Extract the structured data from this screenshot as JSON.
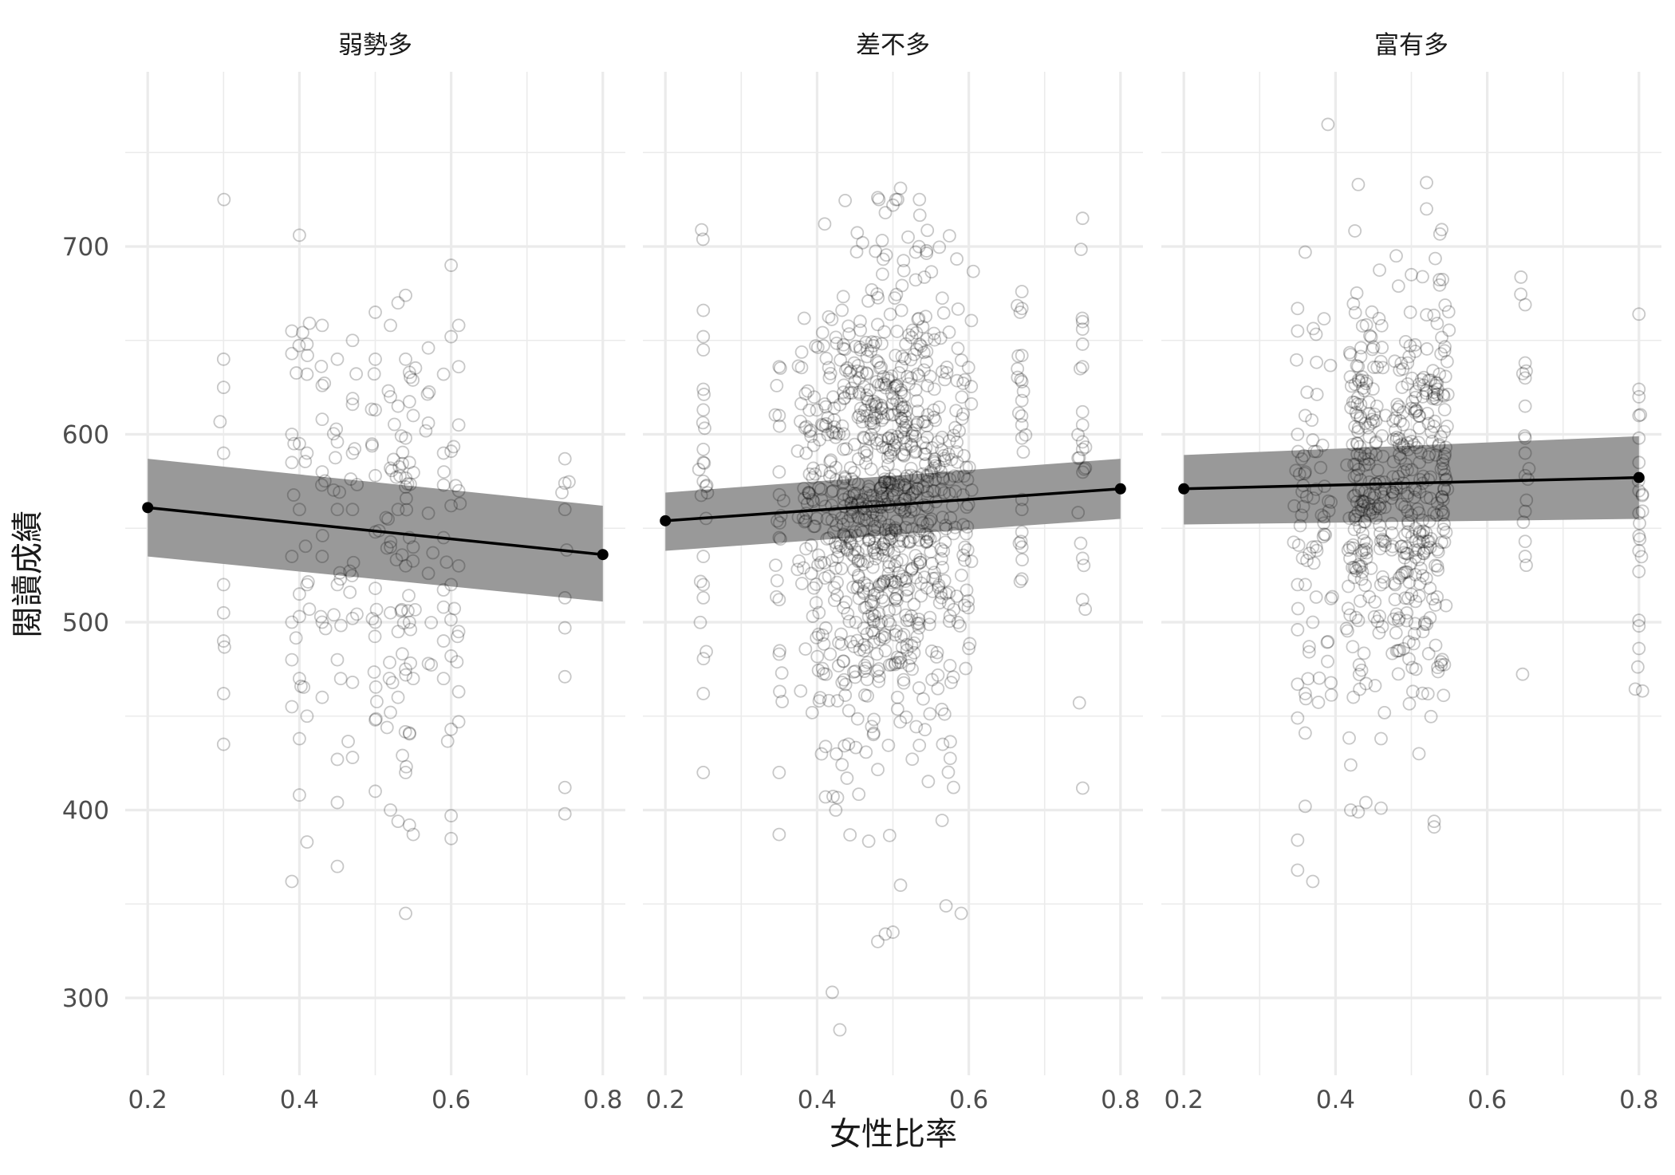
{
  "chart_data": {
    "type": "scatter",
    "facet_variable_values": [
      "弱勢多",
      "差不多",
      "富有多"
    ],
    "xlabel": "女性比率",
    "ylabel": "閱讀成績",
    "xlim": [
      0.2,
      0.8
    ],
    "ylim": [
      260,
      760
    ],
    "x_ticks": [
      "0.2",
      "0.4",
      "0.6",
      "0.8"
    ],
    "y_ticks": [
      "300",
      "400",
      "500",
      "600",
      "700"
    ],
    "grid": true,
    "legend": "none",
    "colors": {
      "points": "#000000",
      "line": "#000000",
      "ribbon": "#999999",
      "grid": "#ebebeb"
    },
    "panels": [
      {
        "title": "弱勢多",
        "fit": {
          "x": [
            0.2,
            0.8
          ],
          "y": [
            561,
            536
          ],
          "ci_lower": [
            535,
            511
          ],
          "ci_upper": [
            587,
            562
          ]
        },
        "cluster_x": [
          0.3,
          0.39,
          0.4,
          0.41,
          0.43,
          0.45,
          0.47,
          0.5,
          0.52,
          0.53,
          0.54,
          0.545,
          0.55,
          0.57,
          0.59,
          0.6,
          0.61,
          0.75
        ],
        "points_sample": [
          [
            0.3,
            640
          ],
          [
            0.3,
            625
          ],
          [
            0.3,
            590
          ],
          [
            0.3,
            520
          ],
          [
            0.3,
            505
          ],
          [
            0.3,
            490
          ],
          [
            0.3,
            462
          ],
          [
            0.3,
            435
          ],
          [
            0.39,
            655
          ],
          [
            0.39,
            643
          ],
          [
            0.39,
            600
          ],
          [
            0.39,
            585
          ],
          [
            0.39,
            535
          ],
          [
            0.39,
            500
          ],
          [
            0.39,
            480
          ],
          [
            0.39,
            455
          ],
          [
            0.39,
            362
          ],
          [
            0.4,
            706
          ],
          [
            0.4,
            595
          ],
          [
            0.4,
            560
          ],
          [
            0.4,
            515
          ],
          [
            0.4,
            470
          ],
          [
            0.4,
            438
          ],
          [
            0.4,
            408
          ],
          [
            0.41,
            648
          ],
          [
            0.41,
            632
          ],
          [
            0.41,
            590
          ],
          [
            0.41,
            520
          ],
          [
            0.41,
            450
          ],
          [
            0.41,
            383
          ],
          [
            0.43,
            658
          ],
          [
            0.43,
            626
          ],
          [
            0.43,
            608
          ],
          [
            0.43,
            580
          ],
          [
            0.43,
            535
          ],
          [
            0.43,
            500
          ],
          [
            0.43,
            460
          ],
          [
            0.45,
            640
          ],
          [
            0.45,
            596
          ],
          [
            0.45,
            560
          ],
          [
            0.45,
            520
          ],
          [
            0.45,
            480
          ],
          [
            0.45,
            427
          ],
          [
            0.45,
            404
          ],
          [
            0.45,
            370
          ],
          [
            0.47,
            650
          ],
          [
            0.47,
            616
          ],
          [
            0.47,
            590
          ],
          [
            0.47,
            560
          ],
          [
            0.47,
            502
          ],
          [
            0.47,
            468
          ],
          [
            0.47,
            428
          ],
          [
            0.5,
            665
          ],
          [
            0.5,
            640
          ],
          [
            0.5,
            613
          ],
          [
            0.5,
            578
          ],
          [
            0.5,
            548
          ],
          [
            0.5,
            518
          ],
          [
            0.5,
            500
          ],
          [
            0.5,
            448
          ],
          [
            0.5,
            410
          ],
          [
            0.52,
            658
          ],
          [
            0.52,
            620
          ],
          [
            0.52,
            582
          ],
          [
            0.52,
            540
          ],
          [
            0.52,
            505
          ],
          [
            0.52,
            452
          ],
          [
            0.52,
            400
          ],
          [
            0.53,
            670
          ],
          [
            0.53,
            615
          ],
          [
            0.53,
            560
          ],
          [
            0.53,
            495
          ],
          [
            0.53,
            460
          ],
          [
            0.53,
            394
          ],
          [
            0.54,
            674
          ],
          [
            0.54,
            640
          ],
          [
            0.54,
            598
          ],
          [
            0.54,
            572
          ],
          [
            0.54,
            530
          ],
          [
            0.54,
            475
          ],
          [
            0.54,
            420
          ],
          [
            0.54,
            345
          ],
          [
            0.545,
            633
          ],
          [
            0.545,
            585
          ],
          [
            0.545,
            545
          ],
          [
            0.545,
            500
          ],
          [
            0.545,
            441
          ],
          [
            0.545,
            392
          ],
          [
            0.55,
            610
          ],
          [
            0.55,
            540
          ],
          [
            0.55,
            470
          ],
          [
            0.55,
            387
          ],
          [
            0.57,
            646
          ],
          [
            0.57,
            606
          ],
          [
            0.57,
            558
          ],
          [
            0.57,
            526
          ],
          [
            0.57,
            478
          ],
          [
            0.59,
            632
          ],
          [
            0.59,
            590
          ],
          [
            0.59,
            573
          ],
          [
            0.59,
            545
          ],
          [
            0.59,
            508
          ],
          [
            0.59,
            490
          ],
          [
            0.59,
            470
          ],
          [
            0.6,
            690
          ],
          [
            0.6,
            652
          ],
          [
            0.6,
            591
          ],
          [
            0.6,
            562
          ],
          [
            0.6,
            520
          ],
          [
            0.6,
            482
          ],
          [
            0.6,
            443
          ],
          [
            0.6,
            397
          ],
          [
            0.61,
            658
          ],
          [
            0.61,
            636
          ],
          [
            0.61,
            605
          ],
          [
            0.61,
            570
          ],
          [
            0.61,
            530
          ],
          [
            0.61,
            495
          ],
          [
            0.61,
            463
          ],
          [
            0.61,
            447
          ],
          [
            0.75,
            587
          ],
          [
            0.75,
            574
          ],
          [
            0.75,
            560
          ],
          [
            0.75,
            513
          ],
          [
            0.75,
            497
          ],
          [
            0.75,
            471
          ],
          [
            0.75,
            412
          ],
          [
            0.75,
            398
          ]
        ]
      },
      {
        "title": "差不多",
        "fit": {
          "x": [
            0.2,
            0.8
          ],
          "y": [
            554,
            571
          ],
          "ci_lower": [
            538,
            555
          ],
          "ci_upper": [
            569,
            587
          ]
        },
        "cluster_x": [
          0.25,
          0.35,
          0.38,
          0.39,
          0.4,
          0.41,
          0.42,
          0.43,
          0.44,
          0.45,
          0.46,
          0.47,
          0.48,
          0.49,
          0.5,
          0.51,
          0.52,
          0.53,
          0.54,
          0.55,
          0.56,
          0.57,
          0.58,
          0.59,
          0.6,
          0.67,
          0.75
        ],
        "points_sample": [
          [
            0.25,
            666
          ],
          [
            0.25,
            652
          ],
          [
            0.25,
            645
          ],
          [
            0.25,
            624
          ],
          [
            0.25,
            613
          ],
          [
            0.25,
            592
          ],
          [
            0.25,
            585
          ],
          [
            0.25,
            575
          ],
          [
            0.25,
            535
          ],
          [
            0.25,
            520
          ],
          [
            0.25,
            513
          ],
          [
            0.25,
            462
          ],
          [
            0.25,
            420
          ],
          [
            0.35,
            636
          ],
          [
            0.35,
            610
          ],
          [
            0.35,
            580
          ],
          [
            0.35,
            545
          ],
          [
            0.35,
            512
          ],
          [
            0.35,
            483
          ],
          [
            0.35,
            420
          ],
          [
            0.35,
            387
          ],
          [
            0.42,
            303
          ],
          [
            0.43,
            283
          ],
          [
            0.48,
            330
          ],
          [
            0.49,
            334
          ],
          [
            0.5,
            335
          ],
          [
            0.51,
            360
          ],
          [
            0.57,
            349
          ],
          [
            0.59,
            345
          ],
          [
            0.48,
            726
          ],
          [
            0.49,
            718
          ],
          [
            0.5,
            722
          ],
          [
            0.51,
            731
          ],
          [
            0.46,
            702
          ],
          [
            0.52,
            705
          ],
          [
            0.41,
            712
          ],
          [
            0.53,
            697
          ],
          [
            0.67,
            676
          ],
          [
            0.67,
            667
          ],
          [
            0.67,
            642
          ],
          [
            0.67,
            628
          ],
          [
            0.67,
            618
          ],
          [
            0.67,
            605
          ],
          [
            0.67,
            598
          ],
          [
            0.67,
            560
          ],
          [
            0.67,
            548
          ],
          [
            0.67,
            540
          ],
          [
            0.67,
            523
          ],
          [
            0.75,
            715
          ],
          [
            0.75,
            660
          ],
          [
            0.75,
            656
          ],
          [
            0.75,
            648
          ],
          [
            0.75,
            636
          ],
          [
            0.75,
            612
          ],
          [
            0.75,
            605
          ],
          [
            0.75,
            596
          ],
          [
            0.75,
            592
          ],
          [
            0.75,
            534
          ],
          [
            0.75,
            512
          ]
        ]
      },
      {
        "title": "富有多",
        "fit": {
          "x": [
            0.2,
            0.8
          ],
          "y": [
            571,
            577
          ],
          "ci_lower": [
            552,
            555
          ],
          "ci_upper": [
            589,
            599
          ]
        },
        "cluster_x": [
          0.35,
          0.36,
          0.37,
          0.38,
          0.39,
          0.42,
          0.425,
          0.43,
          0.435,
          0.44,
          0.45,
          0.46,
          0.48,
          0.49,
          0.5,
          0.51,
          0.52,
          0.53,
          0.54,
          0.545,
          0.65,
          0.8
        ],
        "points_sample": [
          [
            0.39,
            765
          ],
          [
            0.43,
            733
          ],
          [
            0.52,
            734
          ],
          [
            0.52,
            720
          ],
          [
            0.54,
            709
          ],
          [
            0.36,
            697
          ],
          [
            0.48,
            695
          ],
          [
            0.5,
            685
          ],
          [
            0.35,
            667
          ],
          [
            0.35,
            655
          ],
          [
            0.35,
            600
          ],
          [
            0.35,
            520
          ],
          [
            0.35,
            496
          ],
          [
            0.35,
            467
          ],
          [
            0.35,
            449
          ],
          [
            0.35,
            384
          ],
          [
            0.35,
            368
          ],
          [
            0.36,
            610
          ],
          [
            0.36,
            580
          ],
          [
            0.36,
            520
          ],
          [
            0.36,
            462
          ],
          [
            0.36,
            441
          ],
          [
            0.36,
            402
          ],
          [
            0.37,
            597
          ],
          [
            0.37,
            540
          ],
          [
            0.37,
            500
          ],
          [
            0.37,
            362
          ],
          [
            0.42,
            424
          ],
          [
            0.42,
            400
          ],
          [
            0.43,
            399
          ],
          [
            0.44,
            404
          ],
          [
            0.46,
            401
          ],
          [
            0.46,
            438
          ],
          [
            0.53,
            394
          ],
          [
            0.53,
            391
          ],
          [
            0.51,
            430
          ],
          [
            0.65,
            669
          ],
          [
            0.65,
            638
          ],
          [
            0.65,
            630
          ],
          [
            0.65,
            615
          ],
          [
            0.65,
            598
          ],
          [
            0.65,
            590
          ],
          [
            0.65,
            578
          ],
          [
            0.65,
            559
          ],
          [
            0.65,
            543
          ],
          [
            0.65,
            535
          ],
          [
            0.8,
            664
          ],
          [
            0.8,
            624
          ],
          [
            0.8,
            620
          ],
          [
            0.8,
            610
          ],
          [
            0.8,
            598
          ],
          [
            0.8,
            585
          ],
          [
            0.8,
            570
          ],
          [
            0.8,
            558
          ],
          [
            0.8,
            546
          ],
          [
            0.8,
            538
          ],
          [
            0.8,
            527
          ],
          [
            0.8,
            501
          ],
          [
            0.8,
            498
          ],
          [
            0.8,
            486
          ]
        ]
      }
    ]
  }
}
